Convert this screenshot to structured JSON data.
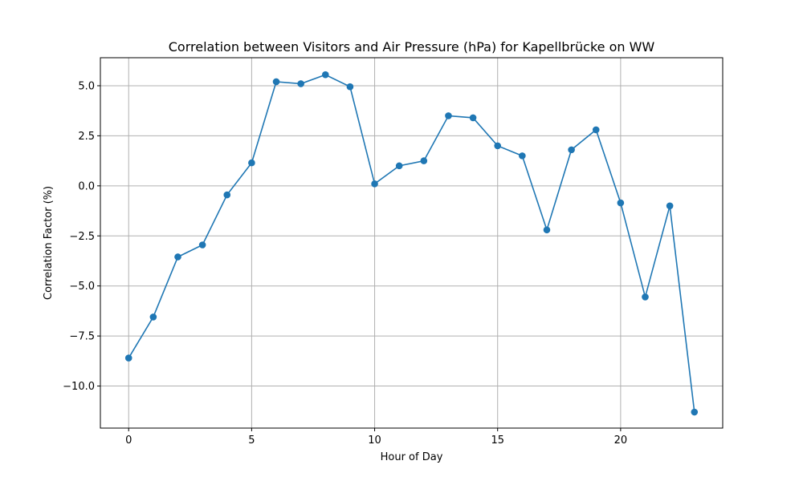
{
  "chart_data": {
    "type": "line",
    "title": "Correlation between Visitors and Air Pressure (hPa) for Kapellbrücke on WW",
    "xlabel": "Hour of Day",
    "ylabel": "Correlation Factor (%)",
    "x": [
      0,
      1,
      2,
      3,
      4,
      5,
      6,
      7,
      8,
      9,
      10,
      11,
      12,
      13,
      14,
      15,
      16,
      17,
      18,
      19,
      20,
      21,
      22,
      23
    ],
    "series": [
      {
        "name": "Correlation Factor",
        "values": [
          -8.6,
          -6.55,
          -3.55,
          -2.95,
          -0.45,
          1.15,
          5.2,
          5.1,
          5.55,
          4.95,
          0.1,
          1.0,
          1.25,
          3.5,
          3.4,
          2.0,
          1.5,
          -2.2,
          1.8,
          2.8,
          -0.85,
          -5.55,
          -1.0,
          -11.3
        ]
      }
    ],
    "xlim": [
      -1.15,
      24.15
    ],
    "ylim": [
      -12.1,
      6.4
    ],
    "xticks": [
      0,
      5,
      10,
      15,
      20
    ],
    "xtick_labels": [
      "0",
      "5",
      "10",
      "15",
      "20"
    ],
    "yticks": [
      -10,
      -7.5,
      -5,
      -2.5,
      0,
      2.5,
      5
    ],
    "ytick_labels": [
      "−10.0",
      "−7.5",
      "−5.0",
      "−2.5",
      "0.0",
      "2.5",
      "5.0"
    ],
    "grid": true,
    "color": "#1f77b4"
  }
}
